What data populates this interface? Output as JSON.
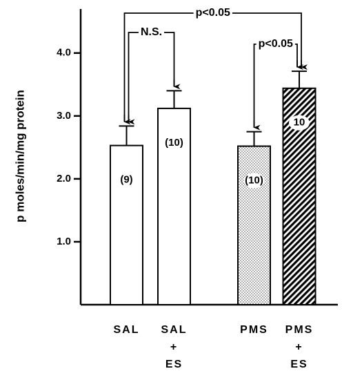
{
  "chart_data": {
    "type": "bar",
    "y_label": "p moles/min/mg protein",
    "categories": [
      [
        "SAL"
      ],
      [
        "SAL",
        "+",
        "ES"
      ],
      [
        "PMS"
      ],
      [
        "PMS",
        "+",
        "ES"
      ]
    ],
    "values": [
      2.53,
      3.12,
      2.52,
      3.44
    ],
    "errors": [
      0.31,
      0.28,
      0.23,
      0.27
    ],
    "n_labels": [
      "(9)",
      "(10)",
      "(10)",
      "10"
    ],
    "patterns": [
      "open",
      "open",
      "dotted",
      "hatched"
    ],
    "color": "#000000",
    "ylim": [
      0,
      4.7
    ],
    "yticks": [
      {
        "value": 1,
        "label": "1.0"
      },
      {
        "value": 2,
        "label": "2.0"
      },
      {
        "value": 3,
        "label": "3.0"
      },
      {
        "value": 4,
        "label": "4.0"
      }
    ],
    "annotations": [
      {
        "text": "p<0.05",
        "from": 0,
        "to": 3
      },
      {
        "text": "N.S.",
        "from": 0,
        "to": 1
      },
      {
        "text": "p<0.05",
        "from": 2,
        "to": 3
      }
    ]
  }
}
